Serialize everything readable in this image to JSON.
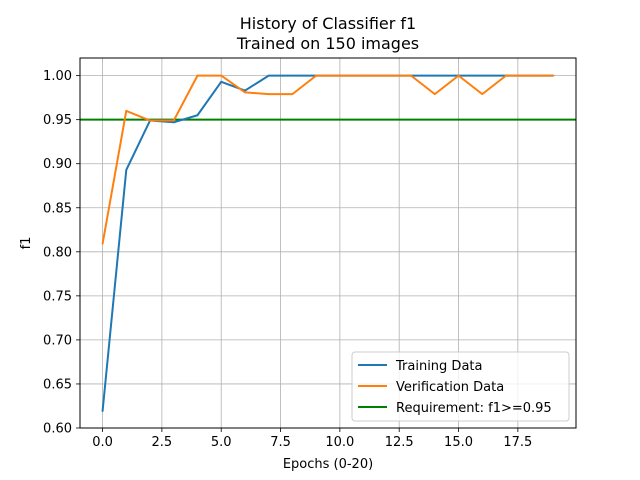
{
  "chart_data": {
    "type": "line",
    "title": "History of Classifier f1",
    "subtitle": "Trained on 150 images",
    "xlabel": "Epochs (0-20)",
    "ylabel": "f1",
    "xlim": [
      -0.95,
      19.95
    ],
    "ylim": [
      0.6,
      1.02
    ],
    "x_ticks": [
      0.0,
      2.5,
      5.0,
      7.5,
      10.0,
      12.5,
      15.0,
      17.5
    ],
    "x_tick_labels": [
      "0.0",
      "2.5",
      "5.0",
      "7.5",
      "10.0",
      "12.5",
      "15.0",
      "17.5"
    ],
    "y_ticks": [
      0.6,
      0.65,
      0.7,
      0.75,
      0.8,
      0.85,
      0.9,
      0.95,
      1.0
    ],
    "y_tick_labels": [
      "0.60",
      "0.65",
      "0.70",
      "0.75",
      "0.80",
      "0.85",
      "0.90",
      "0.95",
      "1.00"
    ],
    "grid": true,
    "legend_position": "lower-right",
    "x": [
      0,
      1,
      2,
      3,
      4,
      5,
      6,
      7,
      8,
      9,
      10,
      11,
      12,
      13,
      14,
      15,
      16,
      17,
      18,
      19
    ],
    "series": [
      {
        "name": "Training Data",
        "color": "#1f77b4",
        "values": [
          0.619,
          0.893,
          0.949,
          0.947,
          0.955,
          0.993,
          0.983,
          1.0,
          1.0,
          1.0,
          1.0,
          1.0,
          1.0,
          1.0,
          1.0,
          1.0,
          1.0,
          1.0,
          1.0,
          1.0
        ]
      },
      {
        "name": "Verification Data",
        "color": "#ff7f0e",
        "values": [
          0.809,
          0.96,
          0.949,
          0.949,
          1.0,
          1.0,
          0.981,
          0.979,
          0.979,
          1.0,
          1.0,
          1.0,
          1.0,
          1.0,
          0.979,
          1.0,
          0.979,
          1.0,
          1.0,
          1.0
        ]
      }
    ],
    "reference_line": {
      "name": "Requirement: f1>=0.95",
      "y": 0.95,
      "color": "#008000"
    }
  }
}
